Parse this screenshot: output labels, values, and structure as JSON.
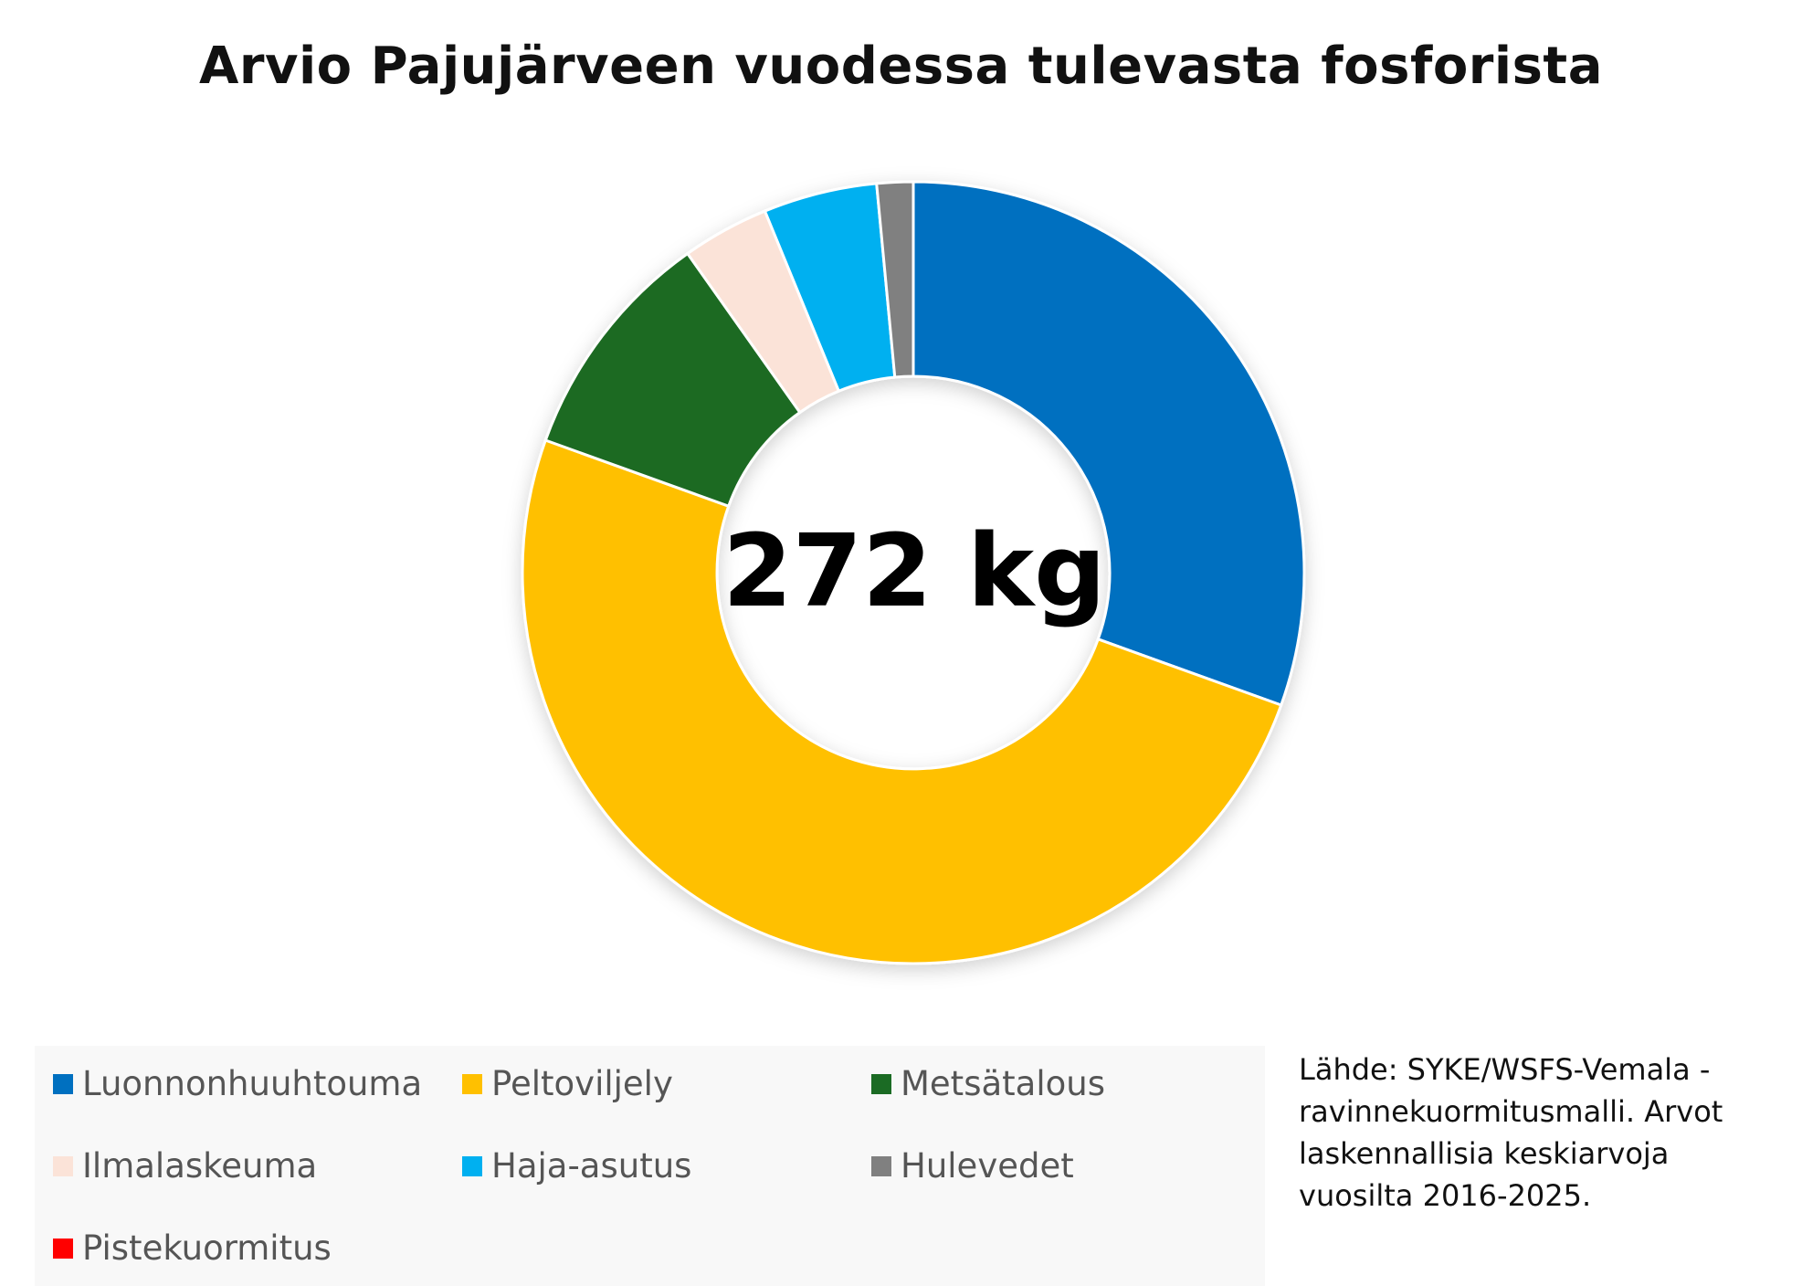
{
  "chart_data": {
    "type": "pie",
    "style": "donut",
    "title": "Arvio Pajujärveen vuodessa tulevasta fosforista",
    "center_label": "272 kg",
    "unit": "%",
    "slices": [
      {
        "label": "Luonnonhuuhtouma",
        "value": 30.5,
        "color": "#0070C0"
      },
      {
        "label": "Peltoviljely",
        "value": 50.0,
        "color": "#FFC000"
      },
      {
        "label": "Metsätalous",
        "value": 9.7,
        "color": "#1B6B24"
      },
      {
        "label": "Ilmalaskeuma",
        "value": 3.6,
        "color": "#FBE3D8"
      },
      {
        "label": "Haja-asutus",
        "value": 4.7,
        "color": "#00B0F0"
      },
      {
        "label": "Hulevedet",
        "value": 1.5,
        "color": "#808080"
      },
      {
        "label": "Pistekuormitus",
        "value": 0,
        "color": "#FF0000"
      }
    ],
    "legend_position": "bottom",
    "source_note": "Lähde: SYKE/WSFS-Vemala -ravinnekuormitusmalli. Arvot laskennallisia keskiarvoja vuosilta 2016-2025."
  }
}
